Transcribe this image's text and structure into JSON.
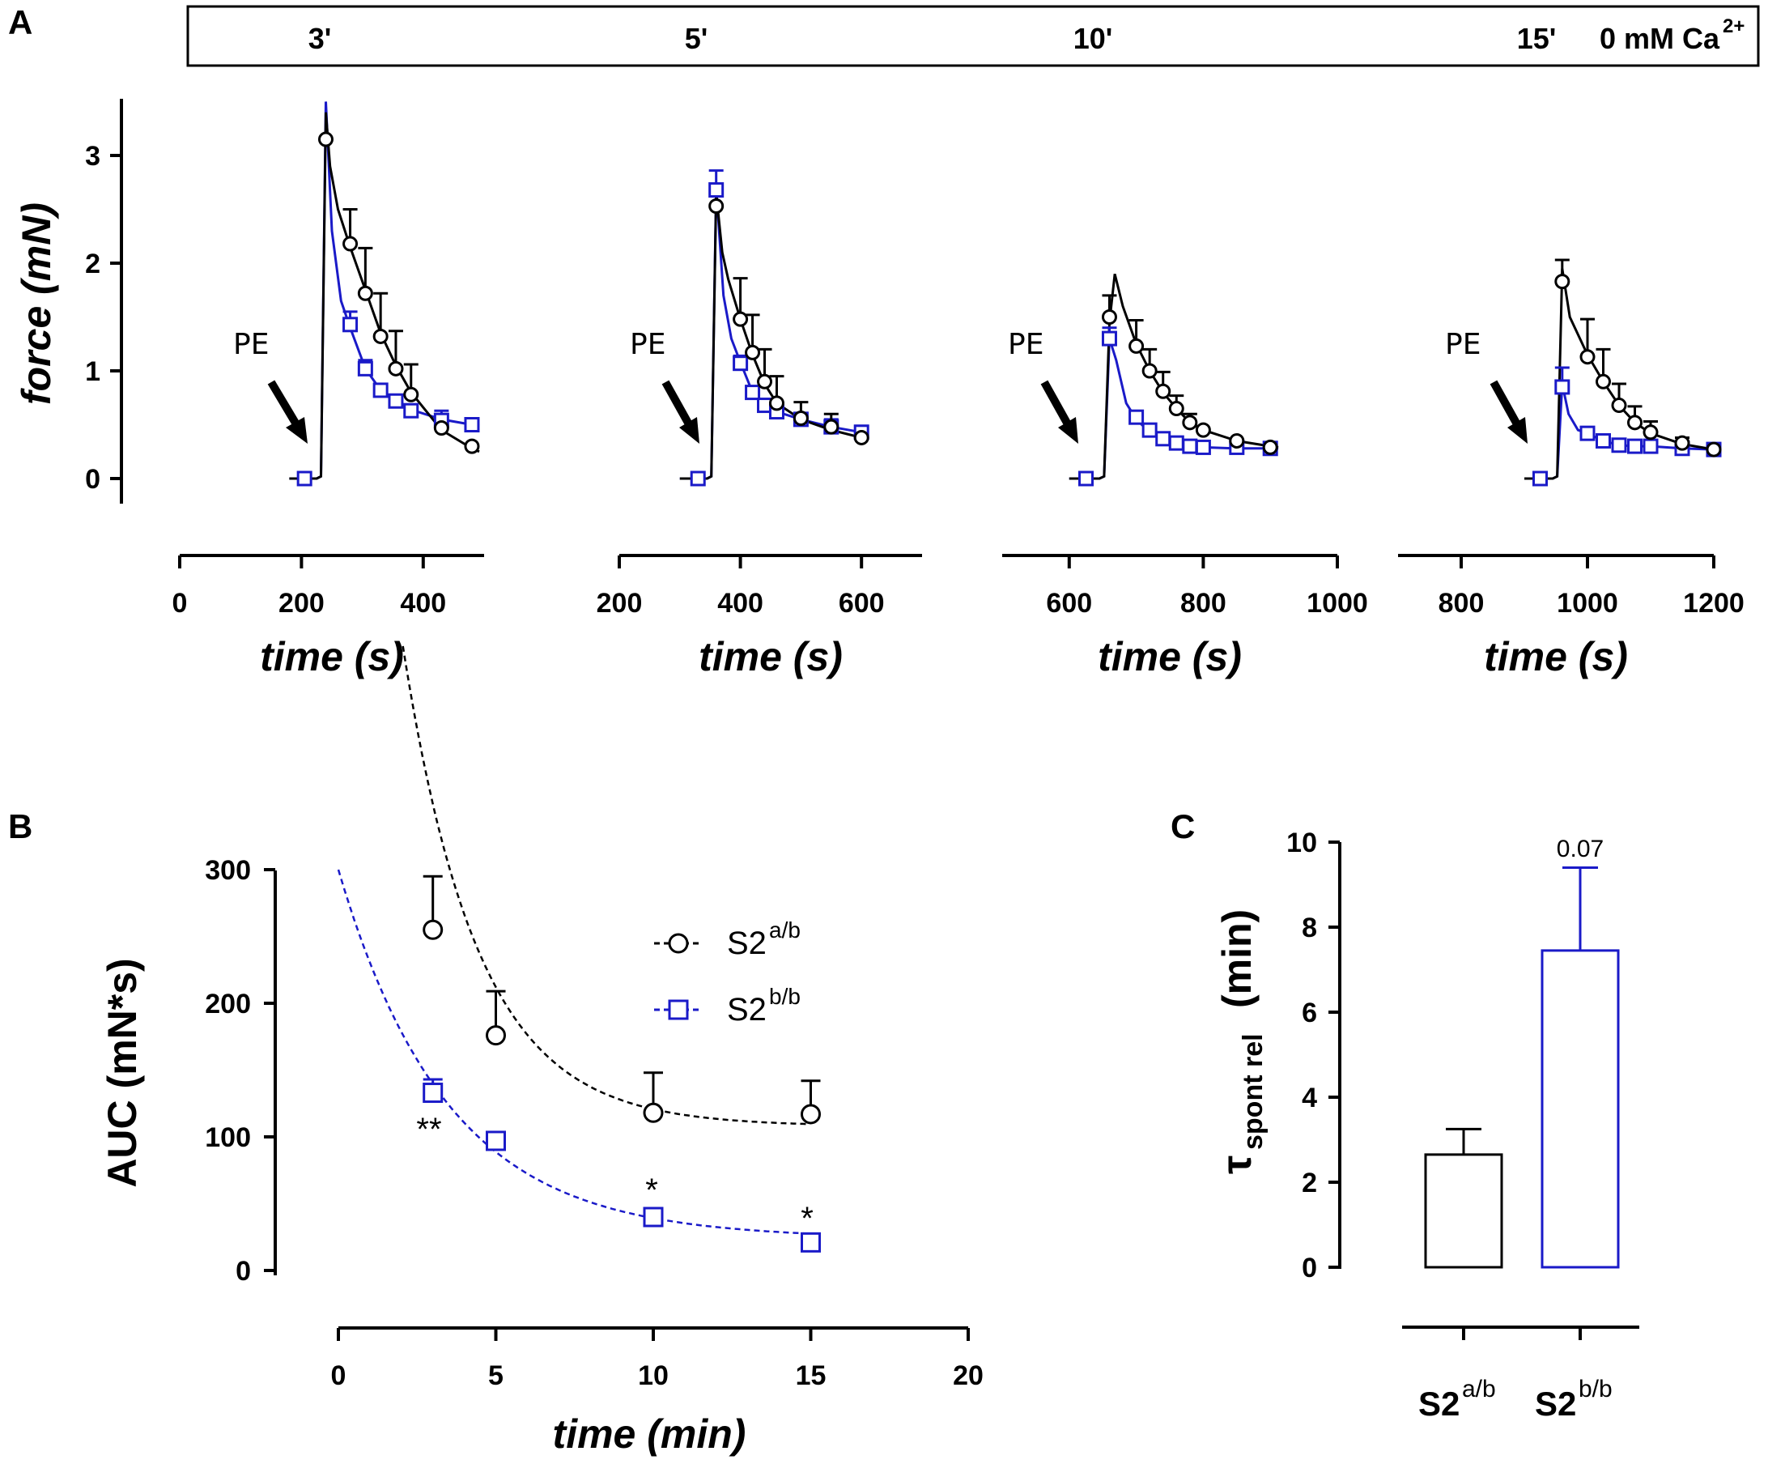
{
  "colors": {
    "s2ab": "#000000",
    "s2bb": "#1a1ac8"
  },
  "panels": {
    "a": "A",
    "b": "B",
    "c": "C"
  },
  "bar_header": {
    "labels": [
      "3'",
      "5'",
      "10'",
      "15'"
    ],
    "condition": "0 mM Ca",
    "condition_sup": "2+"
  },
  "panel_a": {
    "ylabel": "force (mN)",
    "xlabel": "time (s)",
    "stimulus": "PE",
    "yticks": [
      "0",
      "1",
      "2",
      "3"
    ]
  },
  "panel_b": {
    "ylabel": "AUC (mN*s)",
    "xlabel": "time (min)",
    "yticks": [
      "0",
      "100",
      "200",
      "300"
    ],
    "xticks": [
      "0",
      "5",
      "10",
      "15",
      "20"
    ],
    "legend": [
      {
        "base": "S2",
        "sup": "a/b"
      },
      {
        "base": "S2",
        "sup": "b/b"
      }
    ],
    "sig": [
      "**",
      "*",
      "*"
    ]
  },
  "panel_c": {
    "ylabel_main": "τ",
    "ylabel_sub": "spont rel",
    "ylabel_unit": "(min)",
    "yticks": [
      "0",
      "2",
      "4",
      "6",
      "8",
      "10"
    ],
    "p_label": "0.07",
    "categories": [
      {
        "base": "S2",
        "sup": "a/b"
      },
      {
        "base": "S2",
        "sup": "b/b"
      }
    ]
  },
  "chart_data": [
    {
      "type": "line",
      "title": "Panel A - force traces after PE, 3' in 0 mM Ca2+",
      "xlabel": "time (s)",
      "ylabel": "force (mN)",
      "xlim": [
        0,
        500
      ],
      "ylim": [
        0,
        3.5
      ],
      "xticks": [
        0,
        200,
        400
      ],
      "series": [
        {
          "name": "S2a/b",
          "trace": [
            [
              180,
              0
            ],
            [
              225,
              0
            ],
            [
              232,
              0.02
            ],
            [
              240,
              3.4
            ],
            [
              247,
              2.9
            ],
            [
              260,
              2.5
            ],
            [
              280,
              2.15
            ],
            [
              305,
              1.75
            ],
            [
              330,
              1.35
            ],
            [
              355,
              1.05
            ],
            [
              380,
              0.8
            ],
            [
              430,
              0.45
            ],
            [
              480,
              0.28
            ],
            [
              492,
              0.25
            ]
          ],
          "markers": [
            [
              240,
              3.15
            ],
            [
              280,
              2.18
            ],
            [
              305,
              1.72
            ],
            [
              330,
              1.32
            ],
            [
              355,
              1.02
            ],
            [
              380,
              0.78
            ],
            [
              430,
              0.47
            ],
            [
              480,
              0.3
            ]
          ],
          "errors": [
            0,
            0.32,
            0.42,
            0.4,
            0.35,
            0.28,
            0,
            0
          ]
        },
        {
          "name": "S2b/b",
          "trace": [
            [
              180,
              0
            ],
            [
              225,
              0
            ],
            [
              232,
              0.02
            ],
            [
              240,
              3.5
            ],
            [
              250,
              2.3
            ],
            [
              265,
              1.65
            ],
            [
              280,
              1.4
            ],
            [
              305,
              1.02
            ],
            [
              330,
              0.82
            ],
            [
              355,
              0.72
            ],
            [
              380,
              0.64
            ],
            [
              430,
              0.55
            ],
            [
              480,
              0.5
            ],
            [
              492,
              0.49
            ]
          ],
          "markers": [
            [
              205,
              0
            ],
            [
              280,
              1.43
            ],
            [
              305,
              1.02
            ],
            [
              330,
              0.82
            ],
            [
              355,
              0.72
            ],
            [
              380,
              0.63
            ],
            [
              430,
              0.54
            ],
            [
              480,
              0.5
            ]
          ],
          "errors": [
            0,
            0.12,
            0.08,
            0,
            0,
            0,
            0.09,
            0
          ]
        }
      ]
    },
    {
      "type": "line",
      "title": "Panel A - force traces after PE, 5' in 0 mM Ca2+",
      "xlabel": "time (s)",
      "ylabel": "force (mN)",
      "xlim": [
        200,
        700
      ],
      "ylim": [
        0,
        3.5
      ],
      "xticks": [
        200,
        400,
        600
      ],
      "series": [
        {
          "name": "S2a/b",
          "trace": [
            [
              300,
              0
            ],
            [
              345,
              0
            ],
            [
              352,
              0.02
            ],
            [
              360,
              2.65
            ],
            [
              370,
              2.1
            ],
            [
              380,
              1.85
            ],
            [
              400,
              1.48
            ],
            [
              420,
              1.15
            ],
            [
              440,
              0.88
            ],
            [
              460,
              0.7
            ],
            [
              500,
              0.55
            ],
            [
              550,
              0.45
            ],
            [
              600,
              0.38
            ],
            [
              612,
              0.37
            ]
          ],
          "markers": [
            [
              360,
              2.53
            ],
            [
              400,
              1.48
            ],
            [
              420,
              1.17
            ],
            [
              440,
              0.9
            ],
            [
              460,
              0.7
            ],
            [
              500,
              0.56
            ],
            [
              550,
              0.48
            ],
            [
              600,
              0.38
            ]
          ],
          "errors": [
            0,
            0.38,
            0.35,
            0.3,
            0.25,
            0.15,
            0.12,
            0
          ]
        },
        {
          "name": "S2b/b",
          "trace": [
            [
              300,
              0
            ],
            [
              345,
              0
            ],
            [
              352,
              0.02
            ],
            [
              360,
              2.7
            ],
            [
              372,
              1.7
            ],
            [
              385,
              1.3
            ],
            [
              400,
              1.08
            ],
            [
              420,
              0.8
            ],
            [
              440,
              0.68
            ],
            [
              460,
              0.62
            ],
            [
              500,
              0.55
            ],
            [
              550,
              0.48
            ],
            [
              600,
              0.43
            ],
            [
              612,
              0.42
            ]
          ],
          "markers": [
            [
              330,
              0
            ],
            [
              360,
              2.68
            ],
            [
              400,
              1.07
            ],
            [
              420,
              0.8
            ],
            [
              440,
              0.68
            ],
            [
              460,
              0.62
            ],
            [
              500,
              0.55
            ],
            [
              550,
              0.48
            ],
            [
              600,
              0.43
            ]
          ],
          "errors": [
            0,
            0.18,
            0.07,
            0,
            0,
            0,
            0,
            0.07,
            0.06
          ]
        }
      ]
    },
    {
      "type": "line",
      "title": "Panel A - force traces after PE, 10' in 0 mM Ca2+",
      "xlabel": "time (s)",
      "ylabel": "force (mN)",
      "xlim": [
        500,
        1000
      ],
      "ylim": [
        0,
        3.5
      ],
      "xticks": [
        600,
        800,
        1000
      ],
      "series": [
        {
          "name": "S2a/b",
          "trace": [
            [
              600,
              0
            ],
            [
              645,
              0
            ],
            [
              652,
              0.02
            ],
            [
              660,
              1.45
            ],
            [
              668,
              1.9
            ],
            [
              680,
              1.6
            ],
            [
              700,
              1.25
            ],
            [
              720,
              1.0
            ],
            [
              740,
              0.8
            ],
            [
              760,
              0.65
            ],
            [
              780,
              0.52
            ],
            [
              800,
              0.45
            ],
            [
              850,
              0.35
            ],
            [
              900,
              0.3
            ],
            [
              912,
              0.29
            ]
          ],
          "markers": [
            [
              660,
              1.5
            ],
            [
              700,
              1.23
            ],
            [
              720,
              1.0
            ],
            [
              740,
              0.81
            ],
            [
              760,
              0.65
            ],
            [
              780,
              0.52
            ],
            [
              800,
              0.45
            ],
            [
              850,
              0.35
            ],
            [
              900,
              0.29
            ]
          ],
          "errors": [
            0.2,
            0.24,
            0.2,
            0.18,
            0.12,
            0.08,
            0,
            0,
            0
          ]
        },
        {
          "name": "S2b/b",
          "trace": [
            [
              600,
              0
            ],
            [
              645,
              0
            ],
            [
              652,
              0.02
            ],
            [
              660,
              1.3
            ],
            [
              670,
              1.1
            ],
            [
              685,
              0.7
            ],
            [
              700,
              0.55
            ],
            [
              720,
              0.43
            ],
            [
              740,
              0.36
            ],
            [
              760,
              0.33
            ],
            [
              780,
              0.3
            ],
            [
              800,
              0.29
            ],
            [
              850,
              0.28
            ],
            [
              900,
              0.28
            ],
            [
              912,
              0.28
            ]
          ],
          "markers": [
            [
              625,
              0
            ],
            [
              660,
              1.3
            ],
            [
              700,
              0.57
            ],
            [
              720,
              0.45
            ],
            [
              740,
              0.37
            ],
            [
              760,
              0.33
            ],
            [
              780,
              0.3
            ],
            [
              800,
              0.29
            ],
            [
              850,
              0.29
            ],
            [
              900,
              0.28
            ]
          ],
          "errors": [
            0,
            0.1,
            0,
            0,
            0,
            0,
            0,
            0,
            0,
            0
          ]
        }
      ]
    },
    {
      "type": "line",
      "title": "Panel A - force traces after PE, 15' in 0 mM Ca2+",
      "xlabel": "time (s)",
      "ylabel": "force (mN)",
      "xlim": [
        700,
        1200
      ],
      "ylim": [
        0,
        3.5
      ],
      "xticks": [
        800,
        1000,
        1200
      ],
      "series": [
        {
          "name": "S2a/b",
          "trace": [
            [
              900,
              0
            ],
            [
              945,
              0
            ],
            [
              952,
              0.02
            ],
            [
              960,
              1.95
            ],
            [
              972,
              1.5
            ],
            [
              1000,
              1.15
            ],
            [
              1025,
              0.9
            ],
            [
              1050,
              0.68
            ],
            [
              1075,
              0.52
            ],
            [
              1100,
              0.42
            ],
            [
              1150,
              0.32
            ],
            [
              1200,
              0.27
            ],
            [
              1212,
              0.26
            ]
          ],
          "markers": [
            [
              960,
              1.83
            ],
            [
              1000,
              1.13
            ],
            [
              1025,
              0.9
            ],
            [
              1050,
              0.68
            ],
            [
              1075,
              0.52
            ],
            [
              1100,
              0.43
            ],
            [
              1150,
              0.33
            ],
            [
              1200,
              0.27
            ]
          ],
          "errors": [
            0.2,
            0.35,
            0.3,
            0.2,
            0.15,
            0.1,
            0.05,
            0
          ]
        },
        {
          "name": "S2b/b",
          "trace": [
            [
              900,
              0
            ],
            [
              945,
              0
            ],
            [
              952,
              0.02
            ],
            [
              960,
              0.88
            ],
            [
              970,
              0.6
            ],
            [
              985,
              0.45
            ],
            [
              1000,
              0.42
            ],
            [
              1025,
              0.35
            ],
            [
              1050,
              0.31
            ],
            [
              1075,
              0.3
            ],
            [
              1100,
              0.3
            ],
            [
              1150,
              0.28
            ],
            [
              1200,
              0.27
            ],
            [
              1212,
              0.27
            ]
          ],
          "markers": [
            [
              925,
              0
            ],
            [
              960,
              0.85
            ],
            [
              1000,
              0.42
            ],
            [
              1025,
              0.35
            ],
            [
              1050,
              0.31
            ],
            [
              1075,
              0.3
            ],
            [
              1100,
              0.3
            ],
            [
              1150,
              0.28
            ],
            [
              1200,
              0.27
            ]
          ],
          "errors": [
            0,
            0.18,
            0.05,
            0,
            0,
            0,
            0,
            0,
            0
          ]
        }
      ]
    },
    {
      "type": "scatter",
      "title": "Panel B - AUC vs time with exponential fits",
      "xlabel": "time (min)",
      "ylabel": "AUC (mN*s)",
      "xlim": [
        0,
        20
      ],
      "ylim": [
        0,
        300
      ],
      "x": [
        3,
        5,
        10,
        15
      ],
      "series": [
        {
          "name": "S2a/b",
          "values": [
            255,
            176,
            118,
            117
          ],
          "errors": [
            40,
            33,
            30,
            25
          ],
          "fit": {
            "plateau": 108,
            "span": 850,
            "k": 0.42,
            "from": 2.05
          }
        },
        {
          "name": "S2b/b",
          "values": [
            133,
            97,
            40,
            21
          ],
          "errors": [
            10,
            0,
            0,
            0
          ],
          "fit": {
            "plateau": 24,
            "span": 276,
            "k": 0.29,
            "from": 0
          }
        }
      ],
      "annotations": [
        "** at 3 min",
        "* at 10 min",
        "* at 15 min"
      ]
    },
    {
      "type": "bar",
      "title": "Panel C - tau spont rel",
      "xlabel": "",
      "ylabel": "τ spont rel (min)",
      "categories": [
        "S2a/b",
        "S2b/b"
      ],
      "values": [
        2.65,
        7.45
      ],
      "errors": [
        0.6,
        1.95
      ],
      "ylim": [
        0,
        10
      ],
      "annotation": "0.07"
    }
  ]
}
